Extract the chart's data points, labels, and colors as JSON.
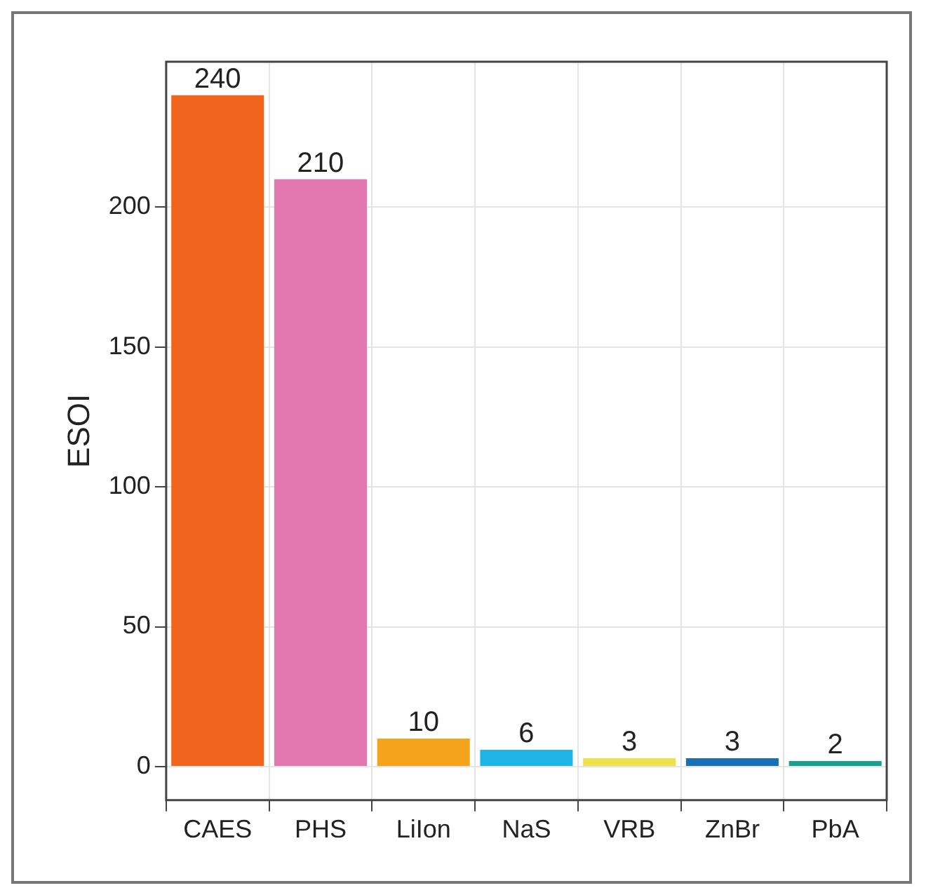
{
  "chart_data": {
    "type": "bar",
    "ylabel": "ESOI",
    "categories": [
      "CAES",
      "PHS",
      "LiIon",
      "NaS",
      "VRB",
      "ZnBr",
      "PbA"
    ],
    "values": [
      240,
      210,
      10,
      6,
      3,
      3,
      2
    ],
    "colors": [
      "#f0641e",
      "#e377b0",
      "#f5a21d",
      "#1eb4e6",
      "#f0e04c",
      "#1a6fb5",
      "#1aa08c"
    ],
    "ylim": [
      -12,
      252
    ],
    "yticks": [
      0,
      50,
      100,
      150,
      200
    ],
    "grid": true,
    "data_labels": true,
    "legend": false
  }
}
